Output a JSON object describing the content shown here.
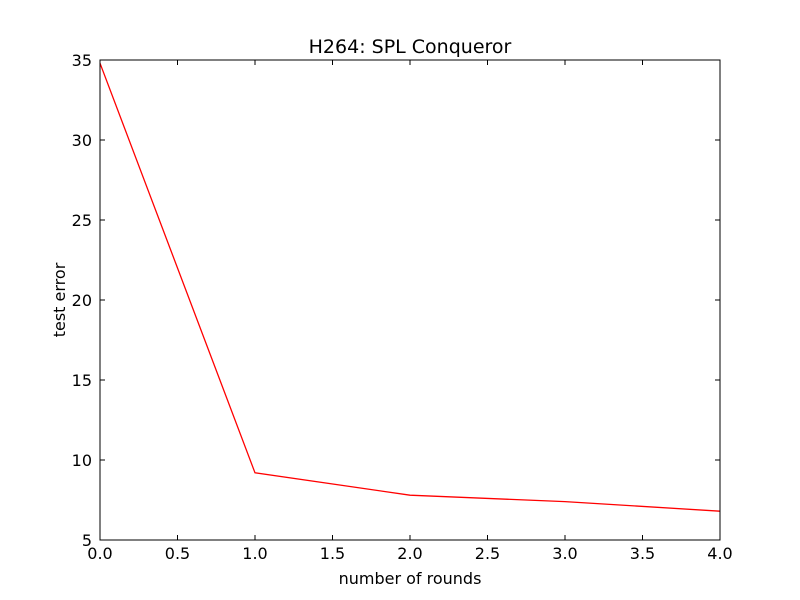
{
  "chart_data": {
    "type": "line",
    "title": "H264: SPL Conqueror",
    "xlabel": "number of rounds",
    "ylabel": "test error",
    "xlim": [
      0.0,
      4.0
    ],
    "ylim": [
      5,
      35
    ],
    "x_ticks": [
      "0.0",
      "0.5",
      "1.0",
      "1.5",
      "2.0",
      "2.5",
      "3.0",
      "3.5",
      "4.0"
    ],
    "y_ticks": [
      "5",
      "10",
      "15",
      "20",
      "25",
      "30",
      "35"
    ],
    "grid": false,
    "series": [
      {
        "color": "#ff0000",
        "x": [
          0,
          1,
          2,
          3,
          4
        ],
        "y": [
          34.8,
          9.2,
          7.8,
          7.4,
          6.8
        ]
      }
    ]
  }
}
